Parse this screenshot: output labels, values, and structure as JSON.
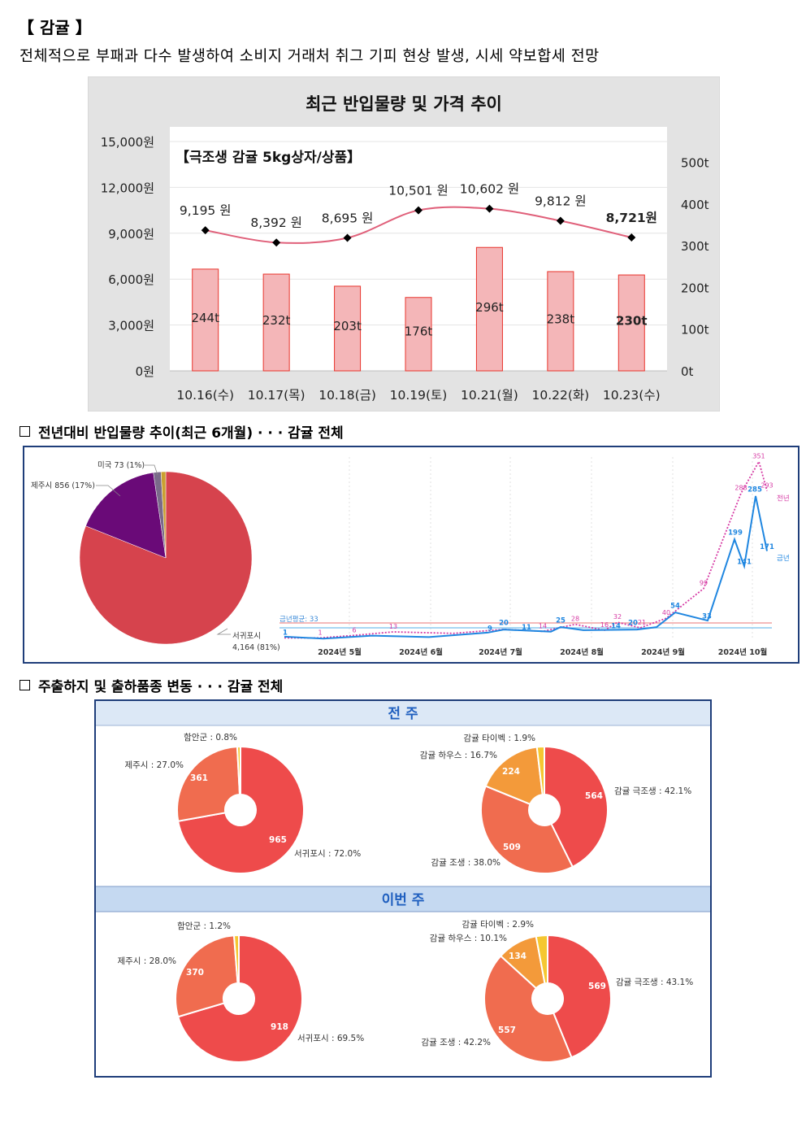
{
  "header": {
    "title": "【 감귤 】",
    "subtitle": "전체적으로 부패과 다수 발생하여 소비지 거래처 취그 기피 현상 발생, 시세 약보합세 전망"
  },
  "sections": {
    "section2": "전년대비 반입물량 추이(최근 6개월) · · · 감귤 전체",
    "section3": "주출하지 및 출하품종 변동 · · · 감귤 전체"
  },
  "colors": {
    "bar_fill": "#f4b6b8",
    "bar_stroke": "#e8342c",
    "price_line": "#e0607a",
    "pie_red": "#d6434d",
    "pie_purple": "#6a0a78",
    "current_line": "#1f86e0",
    "prev_line": "#d63aa4",
    "donut_red": "#ee4b4b",
    "donut_salmon": "#f06c4f",
    "donut_orange": "#f39a3a",
    "donut_yellow": "#f5c731",
    "panel_header": "#c5d9f1",
    "panel_text": "#1f5fbf"
  },
  "chart_data": [
    {
      "type": "bar",
      "title": "최근 반입물량 및 가격 추이",
      "subtitle": "【극조생 감귤 5kg상자/상품】",
      "categories": [
        "10.16(수)",
        "10.17(목)",
        "10.18(금)",
        "10.19(토)",
        "10.21(월)",
        "10.22(화)",
        "10.23(수)"
      ],
      "left_axis": {
        "ticks": [
          "15,000원",
          "12,000원",
          "9,000원",
          "6,000원",
          "3,000원",
          "0원"
        ],
        "ylim": [
          0,
          15000
        ]
      },
      "right_axis": {
        "ticks": [
          "500t",
          "400t",
          "300t",
          "200t",
          "100t",
          "0t"
        ],
        "ylim": [
          0,
          550
        ]
      },
      "series": [
        {
          "name": "반입물량",
          "kind": "bar",
          "axis": "right",
          "values": [
            244,
            232,
            203,
            176,
            296,
            238,
            230
          ],
          "labels": [
            "244t",
            "232t",
            "203t",
            "176t",
            "296t",
            "238t",
            "230t"
          ]
        },
        {
          "name": "가격",
          "kind": "line",
          "axis": "left",
          "values": [
            9195,
            8392,
            8695,
            10501,
            10602,
            9812,
            8721
          ],
          "labels": [
            "9,195 원",
            "8,392 원",
            "8,695 원",
            "10,501 원",
            "10,602 원",
            "9,812 원",
            "8,721원"
          ]
        }
      ],
      "grid": true
    },
    {
      "type": "pie",
      "slices": [
        {
          "label": "서귀포시",
          "value": 4164,
          "text": "4,164 (81%)"
        },
        {
          "label": "제주시",
          "value": 856,
          "text": "제주시 856 (17%)"
        },
        {
          "label": "미국",
          "value": 73,
          "text": "미국 73 (1%)"
        },
        {
          "label": "기타",
          "value": 45,
          "text": ""
        }
      ]
    },
    {
      "type": "line",
      "x_labels": [
        "2024년 5월",
        "2024년 6월",
        "2024년 7월",
        "2024년 8월",
        "2024년 9월",
        "2024년 10월"
      ],
      "avg_label": "금년평균: 33",
      "series": [
        {
          "name": "금년",
          "values": [
            1,
            2,
            3,
            5,
            9,
            20,
            11,
            14,
            25,
            20,
            20,
            54,
            33,
            199,
            141,
            285,
            171
          ]
        },
        {
          "name": "전년",
          "values": [
            1,
            1,
            6,
            13,
            10,
            18,
            14,
            28,
            16,
            32,
            21,
            40,
            99,
            288,
            351,
            293
          ]
        }
      ],
      "point_labels": {
        "current": [
          "1",
          "9",
          "20",
          "11",
          "25",
          "14",
          "20",
          "54",
          "33",
          "199",
          "141",
          "285",
          "171"
        ],
        "previous": [
          "1",
          "6",
          "13",
          "14",
          "28",
          "16",
          "32",
          "21",
          "40",
          "99",
          "288",
          "351",
          "293"
        ]
      }
    },
    {
      "type": "pie",
      "panel": "전 주",
      "subtitle": "region",
      "slices": [
        {
          "label": "서귀포시 : 72.0%",
          "value": 965
        },
        {
          "label": "제주시 : 27.0%",
          "value": 361
        },
        {
          "label": "함안군 : 0.8%",
          "value": 11
        }
      ]
    },
    {
      "type": "pie",
      "panel": "전 주",
      "subtitle": "variety",
      "slices": [
        {
          "label": "감귤 극조생 : 42.1%",
          "value": 564
        },
        {
          "label": "감귤 조생 : 38.0%",
          "value": 509
        },
        {
          "label": "감귤 하우스 : 16.7%",
          "value": 224
        },
        {
          "label": "감귤 타이벡 : 1.9%",
          "value": 25
        }
      ]
    },
    {
      "type": "pie",
      "panel": "이번 주",
      "subtitle": "region",
      "slices": [
        {
          "label": "서귀포시 : 69.5%",
          "value": 918
        },
        {
          "label": "제주시 : 28.0%",
          "value": 370
        },
        {
          "label": "함안군 : 1.2%",
          "value": 16
        }
      ]
    },
    {
      "type": "pie",
      "panel": "이번 주",
      "subtitle": "variety",
      "slices": [
        {
          "label": "감귤 극조생 : 43.1%",
          "value": 569
        },
        {
          "label": "감귤 조생 : 42.2%",
          "value": 557
        },
        {
          "label": "감귤 하우스 : 10.1%",
          "value": 134
        },
        {
          "label": "감귤 타이벡 : 2.9%",
          "value": 38
        }
      ]
    }
  ]
}
